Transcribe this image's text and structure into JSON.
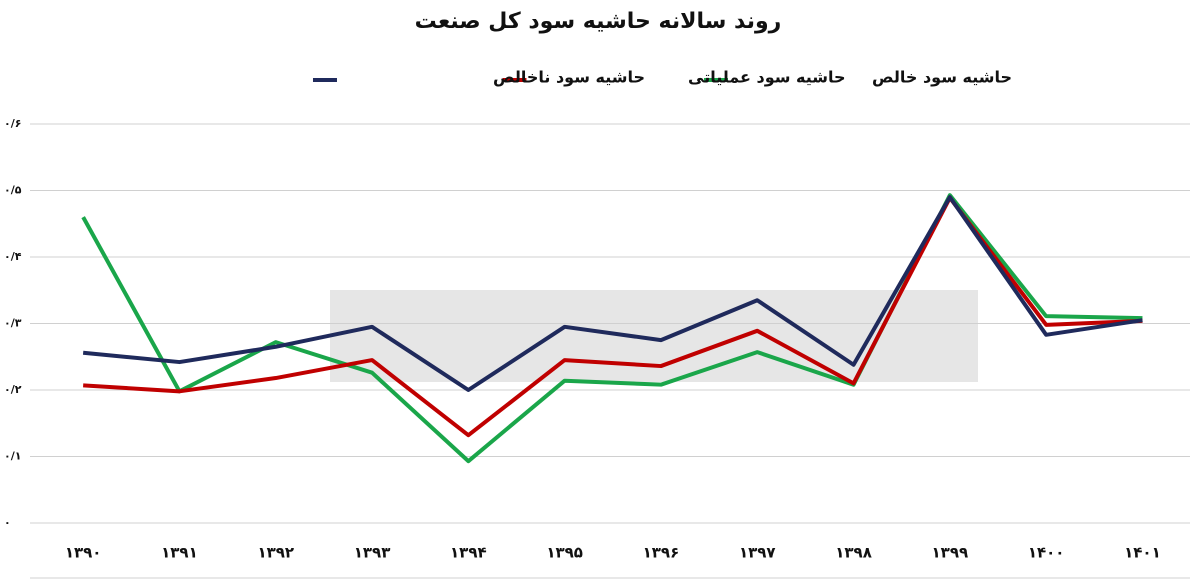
{
  "chart_data": {
    "type": "line",
    "title": "روند سالانه حاشیه سود کل صنعت",
    "categories": [
      "۱۳۹۰",
      "۱۳۹۱",
      "۱۳۹۲",
      "۱۳۹۳",
      "۱۳۹۴",
      "۱۳۹۵",
      "۱۳۹۶",
      "۱۳۹۷",
      "۱۳۹۸",
      "۱۳۹۹",
      "۱۴۰۰",
      "۱۴۰۱"
    ],
    "series": [
      {
        "name": "حاشیه سود خالص",
        "color": "#1aa64a",
        "values": [
          0.46,
          0.198,
          0.272,
          0.226,
          0.093,
          0.214,
          0.208,
          0.257,
          0.208,
          0.493,
          0.311,
          0.308
        ]
      },
      {
        "name": "حاشیه سود عملیاتی",
        "color": "#c00000",
        "values": [
          0.207,
          0.198,
          0.218,
          0.245,
          0.132,
          0.245,
          0.236,
          0.289,
          0.21,
          0.489,
          0.298,
          0.304
        ]
      },
      {
        "name": "حاشیه سود ناخالص",
        "color": "#1f2a5c",
        "values": [
          0.256,
          0.242,
          0.265,
          0.295,
          0.2,
          0.295,
          0.275,
          0.335,
          0.238,
          0.49,
          0.283,
          0.305
        ]
      }
    ],
    "ylim": [
      0,
      0.6
    ],
    "yticks": [
      {
        "value": 0,
        "label": "۰"
      },
      {
        "value": 0.1,
        "label": "۰/۱"
      },
      {
        "value": 0.2,
        "label": "۰/۲"
      },
      {
        "value": 0.3,
        "label": "۰/۳"
      },
      {
        "value": 0.4,
        "label": "۰/۴"
      },
      {
        "value": 0.5,
        "label": "۰/۵"
      },
      {
        "value": 0.6,
        "label": "۰/۶"
      }
    ],
    "grid": true
  }
}
